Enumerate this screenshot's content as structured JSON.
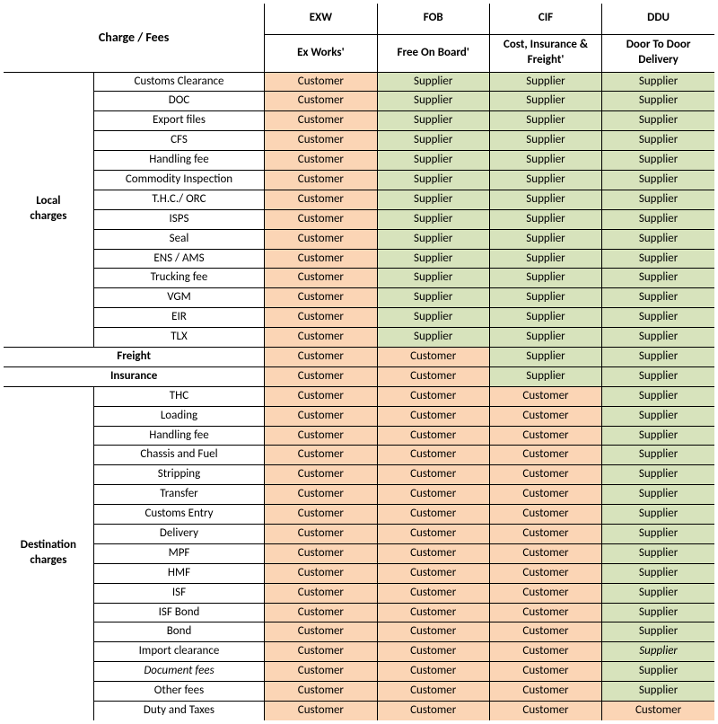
{
  "colors": {
    "customer_bg": "#fbd5b5",
    "supplier_bg": "#d7e3bc",
    "border": "#000000",
    "background": "#ffffff"
  },
  "font": {
    "family": "Calibri, Arial, sans-serif",
    "header_size": 14,
    "body_size": 13
  },
  "header": {
    "charge_fees": "Charge / Fees",
    "cols": [
      {
        "code": "EXW",
        "full": "Ex Works'"
      },
      {
        "code": "FOB",
        "full": "Free On Board'"
      },
      {
        "code": "CIF",
        "full": "Cost, Insurance & Freight'"
      },
      {
        "code": "DDU",
        "full": "Door To Door Delivery"
      }
    ]
  },
  "values": {
    "customer": "Customer",
    "supplier": "Supplier"
  },
  "groups": [
    {
      "label": "Local charges",
      "rows": [
        {
          "name": "Customs Clearance",
          "cells": [
            "Customer",
            "Supplier",
            "Supplier",
            "Supplier"
          ]
        },
        {
          "name": "DOC",
          "cells": [
            "Customer",
            "Supplier",
            "Supplier",
            "Supplier"
          ]
        },
        {
          "name": "Export files",
          "cells": [
            "Customer",
            "Supplier",
            "Supplier",
            "Supplier"
          ]
        },
        {
          "name": "CFS",
          "cells": [
            "Customer",
            "Supplier",
            "Supplier",
            "Supplier"
          ]
        },
        {
          "name": "Handling fee",
          "cells": [
            "Customer",
            "Supplier",
            "Supplier",
            "Supplier"
          ]
        },
        {
          "name": "Commodity Inspection",
          "cells": [
            "Customer",
            "Supplier",
            "Supplier",
            "Supplier"
          ]
        },
        {
          "name": "T.H.C./ ORC",
          "cells": [
            "Customer",
            "Supplier",
            "Supplier",
            "Supplier"
          ]
        },
        {
          "name": "ISPS",
          "cells": [
            "Customer",
            "Supplier",
            "Supplier",
            "Supplier"
          ]
        },
        {
          "name": "Seal",
          "cells": [
            "Customer",
            "Supplier",
            "Supplier",
            "Supplier"
          ]
        },
        {
          "name": "ENS / AMS",
          "cells": [
            "Customer",
            "Supplier",
            "Supplier",
            "Supplier"
          ]
        },
        {
          "name": "Trucking fee",
          "cells": [
            "Customer",
            "Supplier",
            "Supplier",
            "Supplier"
          ]
        },
        {
          "name": "VGM",
          "cells": [
            "Customer",
            "Supplier",
            "Supplier",
            "Supplier"
          ]
        },
        {
          "name": "EIR",
          "cells": [
            "Customer",
            "Supplier",
            "Supplier",
            "Supplier"
          ]
        },
        {
          "name": "TLX",
          "cells": [
            "Customer",
            "Supplier",
            "Supplier",
            "Supplier"
          ]
        }
      ]
    }
  ],
  "freight": {
    "label": "Freight",
    "cells": [
      "Customer",
      "Customer",
      "Supplier",
      "Supplier"
    ]
  },
  "insurance": {
    "label": "Insurance",
    "cells": [
      "Customer",
      "Customer",
      "Supplier",
      "Supplier"
    ]
  },
  "destination": {
    "label": "Destination charges",
    "rows": [
      {
        "name": "THC",
        "cells": [
          "Customer",
          "Customer",
          "Customer",
          "Supplier"
        ]
      },
      {
        "name": "Loading",
        "cells": [
          "Customer",
          "Customer",
          "Customer",
          "Supplier"
        ]
      },
      {
        "name": "Handling fee",
        "cells": [
          "Customer",
          "Customer",
          "Customer",
          "Supplier"
        ]
      },
      {
        "name": "Chassis and Fuel",
        "cells": [
          "Customer",
          "Customer",
          "Customer",
          "Supplier"
        ]
      },
      {
        "name": "Stripping",
        "cells": [
          "Customer",
          "Customer",
          "Customer",
          "Supplier"
        ]
      },
      {
        "name": "Transfer",
        "cells": [
          "Customer",
          "Customer",
          "Customer",
          "Supplier"
        ]
      },
      {
        "name": "Customs Entry",
        "cells": [
          "Customer",
          "Customer",
          "Customer",
          "Supplier"
        ]
      },
      {
        "name": "Delivery",
        "cells": [
          "Customer",
          "Customer",
          "Customer",
          "Supplier"
        ]
      },
      {
        "name": "MPF",
        "cells": [
          "Customer",
          "Customer",
          "Customer",
          "Supplier"
        ]
      },
      {
        "name": "HMF",
        "cells": [
          "Customer",
          "Customer",
          "Customer",
          "Supplier"
        ]
      },
      {
        "name": "ISF",
        "cells": [
          "Customer",
          "Customer",
          "Customer",
          "Supplier"
        ]
      },
      {
        "name": "ISF Bond",
        "cells": [
          "Customer",
          "Customer",
          "Customer",
          "Supplier"
        ]
      },
      {
        "name": "Bond",
        "cells": [
          "Customer",
          "Customer",
          "Customer",
          "Supplier"
        ]
      },
      {
        "name": "Import clearance",
        "cells": [
          "Customer",
          "Customer",
          "Customer",
          "Supplier"
        ],
        "ddu_italic": true
      },
      {
        "name": "Document fees",
        "cells": [
          "Customer",
          "Customer",
          "Customer",
          "Supplier"
        ],
        "name_italic": true
      },
      {
        "name": "Other fees",
        "cells": [
          "Customer",
          "Customer",
          "Customer",
          "Supplier"
        ]
      },
      {
        "name": "Duty and Taxes",
        "cells": [
          "Customer",
          "Customer",
          "Customer",
          "Customer"
        ]
      }
    ]
  }
}
